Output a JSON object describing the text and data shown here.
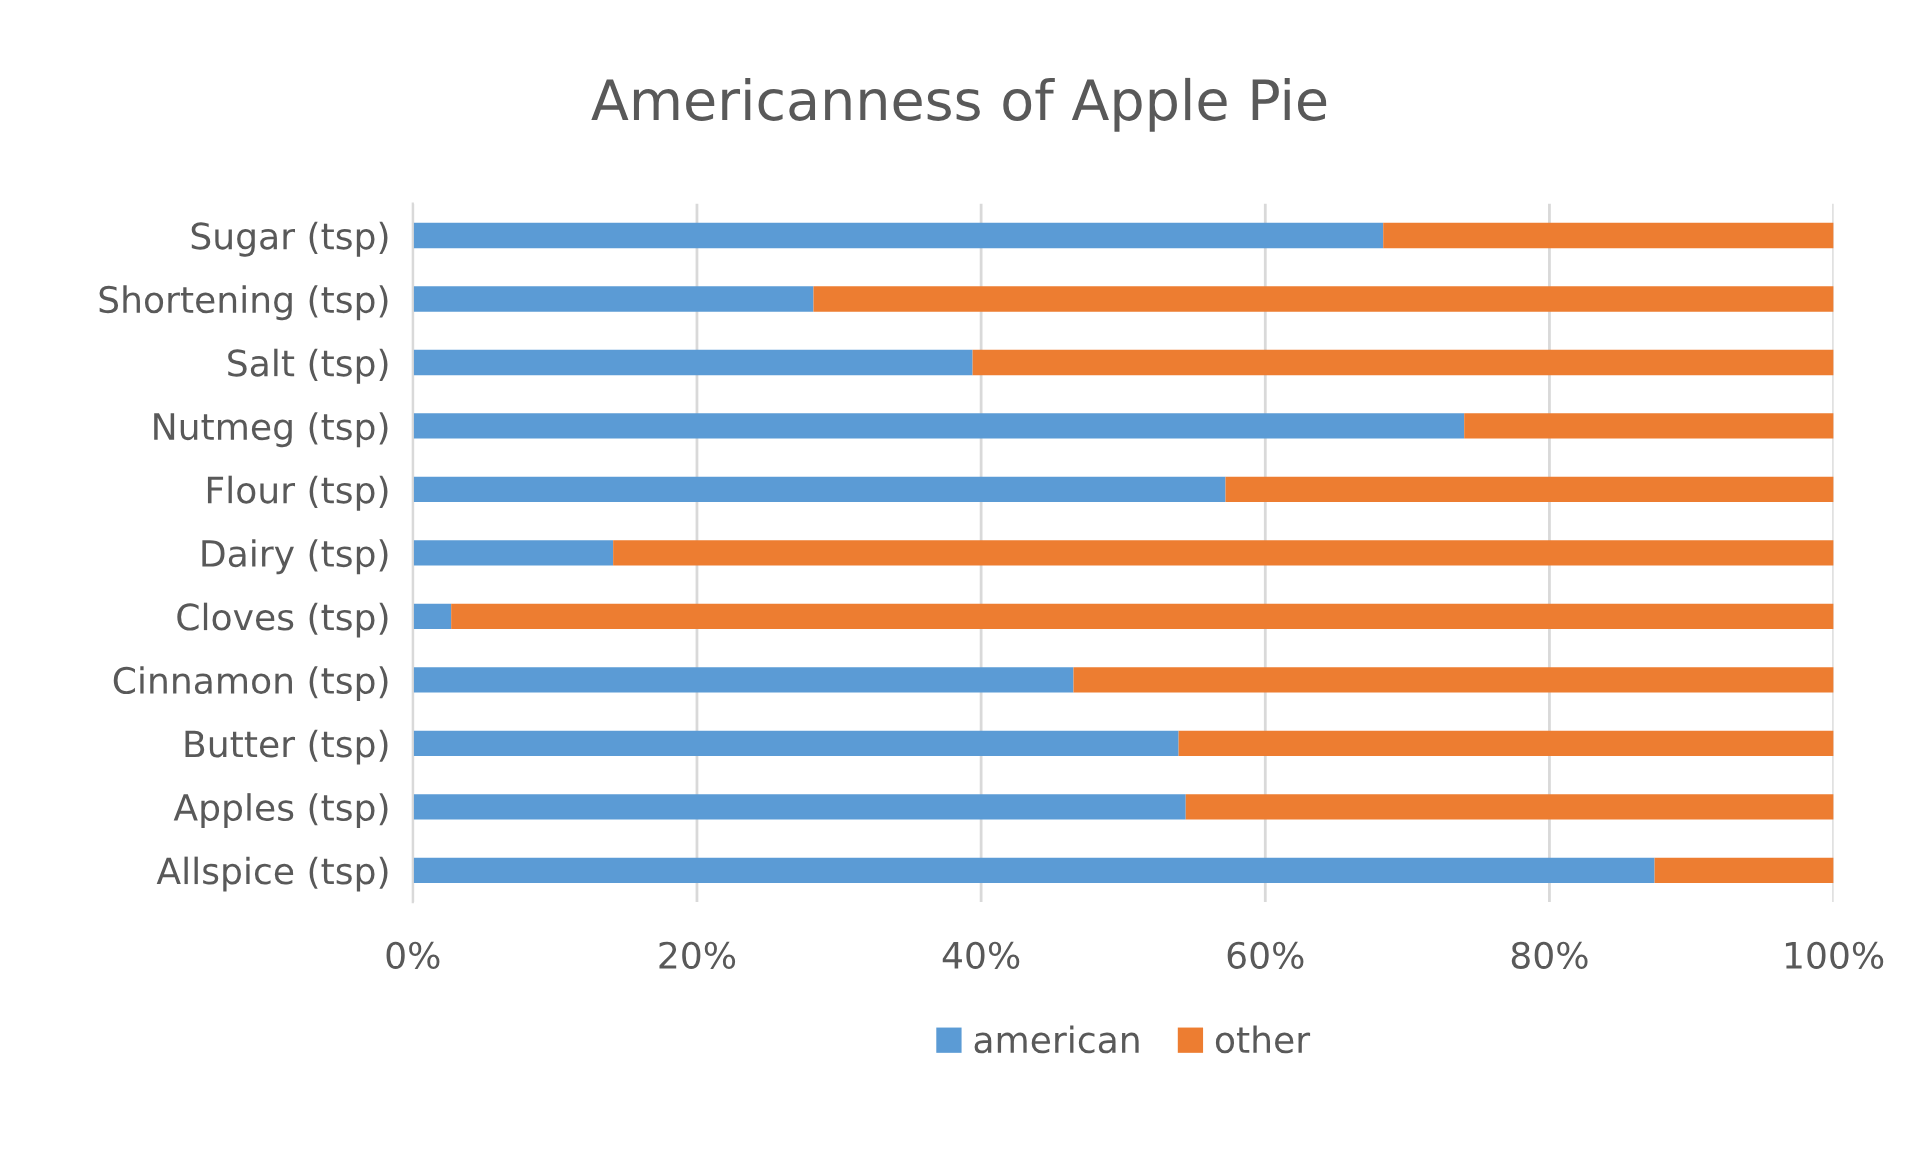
{
  "chart_data": {
    "type": "bar",
    "orientation": "horizontal",
    "stacked": true,
    "title": "Americanness of Apple Pie",
    "categories": [
      "Sugar (tsp)",
      "Shortening (tsp)",
      "Salt (tsp)",
      "Nutmeg (tsp)",
      "Flour (tsp)",
      "Dairy (tsp)",
      "Cloves (tsp)",
      "Cinnamon (tsp)",
      "Butter (tsp)",
      "Apples (tsp)",
      "Allspice (tsp)"
    ],
    "series": [
      {
        "name": "american",
        "color": "#5b9bd5",
        "values": [
          68.3,
          28.2,
          39.4,
          74.0,
          57.2,
          14.1,
          2.7,
          46.5,
          53.9,
          54.4,
          87.4
        ]
      },
      {
        "name": "other",
        "color": "#ed7d31",
        "values": [
          31.7,
          71.8,
          60.6,
          26.0,
          42.8,
          85.9,
          97.3,
          53.5,
          46.1,
          45.6,
          12.6
        ]
      }
    ],
    "xlim": [
      0,
      100
    ],
    "xticks": [
      {
        "value": 0,
        "label": "0%"
      },
      {
        "value": 20,
        "label": "20%"
      },
      {
        "value": 40,
        "label": "40%"
      },
      {
        "value": 60,
        "label": "60%"
      },
      {
        "value": 80,
        "label": "80%"
      },
      {
        "value": 100,
        "label": "100%"
      }
    ],
    "grid": "x",
    "legend": "bottom"
  }
}
